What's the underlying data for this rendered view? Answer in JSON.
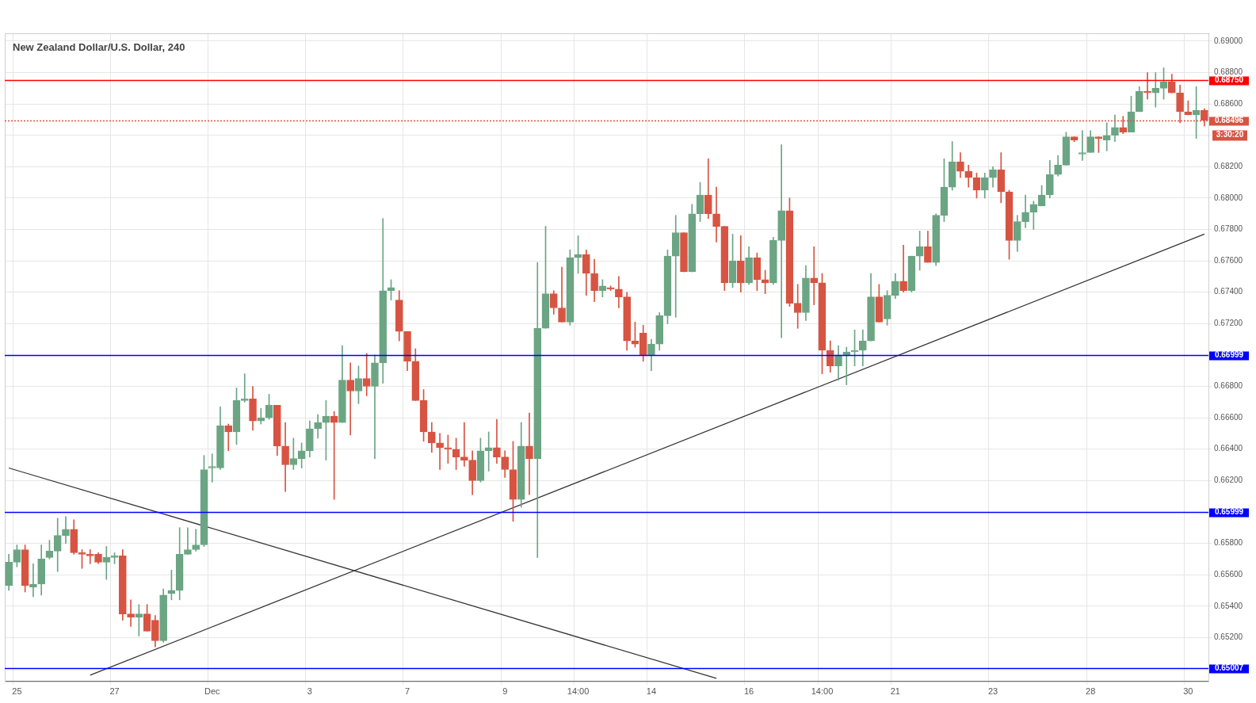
{
  "chart_data": {
    "type": "candlestick",
    "title": "New Zealand Dollar/U.S. Dollar, 240",
    "categories": [
      null,
      "25",
      null,
      null,
      null,
      null,
      null,
      null,
      null,
      null,
      null,
      null,
      null,
      "27",
      null,
      null,
      null,
      null,
      null,
      null,
      null,
      null,
      null,
      null,
      null,
      "Dec",
      null,
      null,
      null,
      null,
      null,
      null,
      null,
      null,
      null,
      null,
      null,
      "3",
      null,
      null,
      null,
      null,
      null,
      null,
      null,
      null,
      null,
      null,
      null,
      "7",
      null,
      null,
      null,
      null,
      null,
      null,
      null,
      null,
      null,
      null,
      null,
      "9",
      null,
      null,
      null,
      null,
      null,
      null,
      null,
      null,
      "14:00",
      null,
      null,
      null,
      null,
      null,
      null,
      null,
      null,
      "14",
      null,
      null,
      null,
      null,
      null,
      null,
      null,
      null,
      null,
      null,
      null,
      "16",
      null,
      null,
      null,
      null,
      null,
      null,
      null,
      null,
      "14:00",
      null,
      null,
      null,
      null,
      null,
      null,
      null,
      null,
      "21",
      null,
      null,
      null,
      null,
      null,
      null,
      null,
      null,
      null,
      null,
      null,
      "23",
      null,
      null,
      null,
      null,
      null,
      null,
      null,
      null,
      null,
      null,
      null,
      "28",
      null,
      null,
      null,
      null,
      null,
      null,
      null,
      null,
      null,
      null,
      null,
      "30",
      null,
      null
    ],
    "ohlc": [
      [
        0.6553,
        0.6573,
        0.655,
        0.6568
      ],
      [
        0.6568,
        0.6579,
        0.6565,
        0.6576
      ],
      [
        0.6576,
        0.6579,
        0.6549,
        0.6553
      ],
      [
        0.6552,
        0.6567,
        0.6546,
        0.6554
      ],
      [
        0.6554,
        0.6579,
        0.6547,
        0.657
      ],
      [
        0.6571,
        0.6582,
        0.657,
        0.6575
      ],
      [
        0.6575,
        0.6596,
        0.6562,
        0.6585
      ],
      [
        0.6585,
        0.6597,
        0.658,
        0.6589
      ],
      [
        0.6589,
        0.6595,
        0.6573,
        0.6574
      ],
      [
        0.6574,
        0.6576,
        0.6564,
        0.6573
      ],
      [
        0.6573,
        0.6576,
        0.6567,
        0.6572
      ],
      [
        0.6573,
        0.6574,
        0.6567,
        0.6568
      ],
      [
        0.6568,
        0.6578,
        0.6557,
        0.6571
      ],
      [
        0.6571,
        0.6574,
        0.6567,
        0.6572
      ],
      [
        0.6572,
        0.6576,
        0.6531,
        0.6535
      ],
      [
        0.6535,
        0.6544,
        0.6527,
        0.6533
      ],
      [
        0.6533,
        0.6541,
        0.6521,
        0.6535
      ],
      [
        0.6535,
        0.6541,
        0.6524,
        0.6524
      ],
      [
        0.6531,
        0.6534,
        0.6514,
        0.6518
      ],
      [
        0.6518,
        0.6551,
        0.6517,
        0.6547
      ],
      [
        0.6548,
        0.6563,
        0.6544,
        0.655
      ],
      [
        0.655,
        0.659,
        0.6544,
        0.6573
      ],
      [
        0.6573,
        0.659,
        0.6573,
        0.6576
      ],
      [
        0.6576,
        0.6589,
        0.6575,
        0.6579
      ],
      [
        0.6579,
        0.6636,
        0.6578,
        0.6627
      ],
      [
        0.6628,
        0.6637,
        0.6619,
        0.6629
      ],
      [
        0.6628,
        0.6667,
        0.6627,
        0.6655
      ],
      [
        0.6655,
        0.6656,
        0.6639,
        0.6651
      ],
      [
        0.6651,
        0.6679,
        0.6643,
        0.6671
      ],
      [
        0.6671,
        0.6688,
        0.667,
        0.6672
      ],
      [
        0.6672,
        0.668,
        0.6652,
        0.6658
      ],
      [
        0.6658,
        0.6666,
        0.6656,
        0.666
      ],
      [
        0.666,
        0.6675,
        0.6659,
        0.6668
      ],
      [
        0.6668,
        0.6668,
        0.6636,
        0.6642
      ],
      [
        0.6642,
        0.6657,
        0.6613,
        0.663
      ],
      [
        0.663,
        0.6647,
        0.6627,
        0.6634
      ],
      [
        0.6634,
        0.6644,
        0.6628,
        0.6639
      ],
      [
        0.6639,
        0.6658,
        0.6635,
        0.6653
      ],
      [
        0.6653,
        0.6662,
        0.6647,
        0.6657
      ],
      [
        0.6657,
        0.6671,
        0.6633,
        0.6661
      ],
      [
        0.6661,
        0.6664,
        0.6608,
        0.6657
      ],
      [
        0.6657,
        0.6706,
        0.6657,
        0.6684
      ],
      [
        0.6684,
        0.6695,
        0.6649,
        0.6677
      ],
      [
        0.6677,
        0.6693,
        0.6669,
        0.6685
      ],
      [
        0.6685,
        0.6701,
        0.6674,
        0.668
      ],
      [
        0.668,
        0.67,
        0.6634,
        0.6695
      ],
      [
        0.6695,
        0.6787,
        0.6682,
        0.6741
      ],
      [
        0.6741,
        0.6748,
        0.6735,
        0.6743
      ],
      [
        0.6735,
        0.6741,
        0.6709,
        0.6715
      ],
      [
        0.6715,
        0.6715,
        0.669,
        0.6696
      ],
      [
        0.6696,
        0.6704,
        0.6671,
        0.6671
      ],
      [
        0.6671,
        0.6678,
        0.6645,
        0.6651
      ],
      [
        0.6651,
        0.6657,
        0.6638,
        0.6644
      ],
      [
        0.6644,
        0.665,
        0.6627,
        0.6641
      ],
      [
        0.6641,
        0.6649,
        0.6631,
        0.664
      ],
      [
        0.664,
        0.6647,
        0.6627,
        0.6635
      ],
      [
        0.6635,
        0.6657,
        0.6629,
        0.6633
      ],
      [
        0.6633,
        0.6639,
        0.6611,
        0.662
      ],
      [
        0.662,
        0.6647,
        0.6619,
        0.6639
      ],
      [
        0.6639,
        0.6651,
        0.6626,
        0.6641
      ],
      [
        0.6641,
        0.6659,
        0.6631,
        0.6635
      ],
      [
        0.6635,
        0.6639,
        0.6622,
        0.6627
      ],
      [
        0.6627,
        0.6645,
        0.6594,
        0.6608
      ],
      [
        0.6608,
        0.6657,
        0.6603,
        0.6642
      ],
      [
        0.6642,
        0.6663,
        0.6611,
        0.6634
      ],
      [
        0.6634,
        0.6759,
        0.6571,
        0.6717
      ],
      [
        0.6717,
        0.6782,
        0.6717,
        0.6739
      ],
      [
        0.6739,
        0.6741,
        0.6726,
        0.673
      ],
      [
        0.673,
        0.6756,
        0.6721,
        0.6721
      ],
      [
        0.6721,
        0.6767,
        0.6719,
        0.6762
      ],
      [
        0.6762,
        0.6776,
        0.6752,
        0.6764
      ],
      [
        0.6764,
        0.6767,
        0.6738,
        0.6752
      ],
      [
        0.6752,
        0.6761,
        0.6734,
        0.6741
      ],
      [
        0.6741,
        0.6748,
        0.6737,
        0.6744
      ],
      [
        0.6743,
        0.6744,
        0.6741,
        0.6742
      ],
      [
        0.6742,
        0.675,
        0.673,
        0.6737
      ],
      [
        0.6737,
        0.674,
        0.6703,
        0.6709
      ],
      [
        0.6709,
        0.6721,
        0.6705,
        0.6707
      ],
      [
        0.6714,
        0.6719,
        0.6696,
        0.67
      ],
      [
        0.67,
        0.671,
        0.669,
        0.6707
      ],
      [
        0.6707,
        0.6727,
        0.6703,
        0.6725
      ],
      [
        0.6725,
        0.6767,
        0.672,
        0.6763
      ],
      [
        0.6763,
        0.6789,
        0.6724,
        0.6778
      ],
      [
        0.6778,
        0.6778,
        0.6753,
        0.6753
      ],
      [
        0.6753,
        0.6796,
        0.6753,
        0.679
      ],
      [
        0.679,
        0.681,
        0.6785,
        0.6802
      ],
      [
        0.6802,
        0.6825,
        0.6787,
        0.679
      ],
      [
        0.679,
        0.6807,
        0.6772,
        0.6782
      ],
      [
        0.6782,
        0.6782,
        0.6741,
        0.6746
      ],
      [
        0.6746,
        0.6777,
        0.6743,
        0.676
      ],
      [
        0.676,
        0.6776,
        0.674,
        0.6746
      ],
      [
        0.6746,
        0.6769,
        0.6745,
        0.6762
      ],
      [
        0.6762,
        0.6765,
        0.6741,
        0.6748
      ],
      [
        0.6748,
        0.6754,
        0.6739,
        0.6746
      ],
      [
        0.6746,
        0.6775,
        0.6745,
        0.6773
      ],
      [
        0.6773,
        0.6834,
        0.6711,
        0.6792
      ],
      [
        0.6792,
        0.68,
        0.6731,
        0.6733
      ],
      [
        0.6733,
        0.6745,
        0.6717,
        0.6727
      ],
      [
        0.6727,
        0.6757,
        0.6722,
        0.6749
      ],
      [
        0.6749,
        0.6769,
        0.6732,
        0.6746
      ],
      [
        0.6746,
        0.6752,
        0.6688,
        0.6703
      ],
      [
        0.6703,
        0.6709,
        0.6689,
        0.6693
      ],
      [
        0.6693,
        0.6706,
        0.6684,
        0.67
      ],
      [
        0.67,
        0.6705,
        0.6681,
        0.6702
      ],
      [
        0.6702,
        0.6716,
        0.6693,
        0.6703
      ],
      [
        0.6703,
        0.6716,
        0.6693,
        0.6709
      ],
      [
        0.6709,
        0.6752,
        0.6709,
        0.6737
      ],
      [
        0.6737,
        0.6745,
        0.6721,
        0.6721
      ],
      [
        0.6723,
        0.6741,
        0.6719,
        0.6738
      ],
      [
        0.6738,
        0.6752,
        0.6736,
        0.6747
      ],
      [
        0.6747,
        0.677,
        0.674,
        0.6741
      ],
      [
        0.6741,
        0.6763,
        0.674,
        0.6763
      ],
      [
        0.6763,
        0.6779,
        0.6754,
        0.6769
      ],
      [
        0.6769,
        0.6779,
        0.6759,
        0.6759
      ],
      [
        0.6759,
        0.679,
        0.6757,
        0.6789
      ],
      [
        0.6789,
        0.6825,
        0.6785,
        0.6807
      ],
      [
        0.6807,
        0.6836,
        0.6805,
        0.6823
      ],
      [
        0.6823,
        0.6829,
        0.6813,
        0.6817
      ],
      [
        0.6817,
        0.6821,
        0.6807,
        0.6813
      ],
      [
        0.6813,
        0.6816,
        0.68,
        0.6805
      ],
      [
        0.6805,
        0.6816,
        0.68,
        0.6813
      ],
      [
        0.6813,
        0.682,
        0.6807,
        0.6818
      ],
      [
        0.6818,
        0.6829,
        0.6797,
        0.6804
      ],
      [
        0.6804,
        0.6805,
        0.6761,
        0.6773
      ],
      [
        0.6773,
        0.6789,
        0.6766,
        0.6785
      ],
      [
        0.6785,
        0.6802,
        0.6781,
        0.6791
      ],
      [
        0.6791,
        0.6798,
        0.678,
        0.6796
      ],
      [
        0.6795,
        0.6808,
        0.6795,
        0.6802
      ],
      [
        0.6802,
        0.6824,
        0.68,
        0.6815
      ],
      [
        0.6815,
        0.6827,
        0.6814,
        0.6821
      ],
      [
        0.6821,
        0.6842,
        0.6821,
        0.6839
      ],
      [
        0.6839,
        0.6839,
        0.6836,
        0.6837
      ],
      [
        0.6828,
        0.6843,
        0.6824,
        0.6829
      ],
      [
        0.6829,
        0.6843,
        0.6829,
        0.6839
      ],
      [
        0.6839,
        0.6839,
        0.6829,
        0.6838
      ],
      [
        0.6837,
        0.6848,
        0.683,
        0.684
      ],
      [
        0.684,
        0.6853,
        0.6836,
        0.6845
      ],
      [
        0.6845,
        0.6852,
        0.6841,
        0.6842
      ],
      [
        0.6842,
        0.6865,
        0.6842,
        0.6855
      ],
      [
        0.6855,
        0.6871,
        0.6855,
        0.6868
      ],
      [
        0.6868,
        0.688,
        0.6863,
        0.6867
      ],
      [
        0.6867,
        0.688,
        0.6858,
        0.687
      ],
      [
        0.687,
        0.6883,
        0.6863,
        0.6874
      ],
      [
        0.6874,
        0.6879,
        0.6867,
        0.6867
      ],
      [
        0.6867,
        0.6872,
        0.6848,
        0.6855
      ],
      [
        0.6855,
        0.6862,
        0.6853,
        0.6853
      ],
      [
        0.6853,
        0.6871,
        0.6838,
        0.6856
      ],
      [
        0.6856,
        0.6857,
        0.6846,
        0.68496
      ]
    ],
    "colors": [
      "#6ba583",
      "#6ba583",
      "#d75442",
      "#6ba583",
      "#6ba583",
      "#6ba583",
      "#6ba583",
      "#6ba583",
      "#d75442",
      "#d75442",
      "#d75442",
      "#d75442",
      "#6ba583",
      "#6ba583",
      "#d75442",
      "#d75442",
      "#6ba583",
      "#d75442",
      "#d75442",
      "#6ba583",
      "#6ba583",
      "#6ba583",
      "#6ba583",
      "#6ba583",
      "#6ba583",
      "#6ba583",
      "#6ba583",
      "#d75442",
      "#6ba583",
      "#6ba583",
      "#d75442",
      "#6ba583",
      "#6ba583",
      "#d75442",
      "#d75442",
      "#6ba583",
      "#6ba583",
      "#6ba583",
      "#6ba583",
      "#6ba583",
      "#d75442",
      "#6ba583",
      "#d75442",
      "#6ba583",
      "#d75442",
      "#6ba583",
      "#6ba583",
      "#6ba583",
      "#d75442",
      "#d75442",
      "#d75442",
      "#d75442",
      "#d75442",
      "#d75442",
      "#d75442",
      "#d75442",
      "#d75442",
      "#d75442",
      "#6ba583",
      "#6ba583",
      "#d75442",
      "#d75442",
      "#d75442",
      "#6ba583",
      "#d75442",
      "#6ba583",
      "#6ba583",
      "#d75442",
      "#d75442",
      "#6ba583",
      "#6ba583",
      "#d75442",
      "#d75442",
      "#6ba583",
      "#d75442",
      "#d75442",
      "#d75442",
      "#d75442",
      "#d75442",
      "#6ba583",
      "#6ba583",
      "#6ba583",
      "#6ba583",
      "#d75442",
      "#6ba583",
      "#6ba583",
      "#d75442",
      "#d75442",
      "#d75442",
      "#6ba583",
      "#d75442",
      "#6ba583",
      "#d75442",
      "#d75442",
      "#6ba583",
      "#6ba583",
      "#d75442",
      "#d75442",
      "#6ba583",
      "#d75442",
      "#d75442",
      "#d75442",
      "#6ba583",
      "#6ba583",
      "#6ba583",
      "#6ba583",
      "#6ba583",
      "#d75442",
      "#6ba583",
      "#6ba583",
      "#d75442",
      "#6ba583",
      "#6ba583",
      "#d75442",
      "#6ba583",
      "#6ba583",
      "#6ba583",
      "#d75442",
      "#d75442",
      "#d75442",
      "#6ba583",
      "#6ba583",
      "#d75442",
      "#d75442",
      "#6ba583",
      "#6ba583",
      "#6ba583",
      "#6ba583",
      "#6ba583",
      "#6ba583",
      "#6ba583",
      "#d75442",
      "#6ba583",
      "#6ba583",
      "#d75442",
      "#6ba583",
      "#6ba583",
      "#d75442",
      "#6ba583",
      "#6ba583",
      "#d75442",
      "#6ba583",
      "#6ba583",
      "#d75442",
      "#d75442",
      "#d75442",
      "#6ba583",
      "#d75442"
    ],
    "series": [
      {
        "type": "line",
        "color": "#333333",
        "values": [
          null,
          null,
          null,
          null,
          null,
          null,
          null,
          null,
          null,
          null,
          0.6496,
          null,
          null,
          null,
          null,
          null,
          null,
          null,
          null,
          null,
          null,
          null,
          null,
          null,
          null,
          null,
          null,
          null,
          null,
          null,
          null,
          null,
          null,
          null,
          null,
          null,
          null,
          null,
          null,
          null,
          null,
          null,
          null,
          null,
          null,
          null,
          null,
          null,
          null,
          null,
          null,
          null,
          null,
          null,
          null,
          null,
          null,
          null,
          null,
          null,
          null,
          null,
          null,
          null,
          null,
          null,
          null,
          null,
          null,
          null,
          null,
          null,
          null,
          null,
          null,
          null,
          null,
          null,
          null,
          null,
          null,
          null,
          null,
          null,
          null,
          null,
          null,
          null,
          null,
          null,
          null,
          null,
          null,
          null,
          null,
          null,
          null,
          null,
          null,
          null,
          null,
          null,
          null,
          null,
          null,
          null,
          null,
          null,
          null,
          null,
          null,
          null,
          null,
          null,
          null,
          null,
          null,
          null,
          null,
          null,
          null,
          null,
          null,
          null,
          null,
          null,
          null,
          null,
          null,
          null,
          null,
          null,
          null,
          null,
          null,
          null,
          null,
          null,
          null,
          null,
          null,
          null,
          null,
          null,
          null,
          null,
          null,
          0.6777
        ]
      },
      {
        "type": "line",
        "color": "#333333",
        "values": [
          0.6628,
          null,
          null,
          null,
          null,
          null,
          null,
          null,
          null,
          null,
          null,
          null,
          null,
          null,
          null,
          null,
          null,
          null,
          null,
          null,
          null,
          null,
          null,
          null,
          null,
          null,
          null,
          null,
          null,
          null,
          null,
          null,
          null,
          null,
          null,
          null,
          null,
          null,
          null,
          null,
          null,
          null,
          null,
          null,
          null,
          null,
          null,
          null,
          null,
          null,
          null,
          null,
          null,
          null,
          null,
          null,
          null,
          null,
          null,
          null,
          null,
          null,
          null,
          null,
          null,
          null,
          null,
          null,
          null,
          null,
          null,
          null,
          null,
          null,
          null,
          null,
          null,
          null,
          null,
          null,
          null,
          null,
          null,
          null,
          null,
          null,
          null,
          0.6494,
          null,
          null,
          null,
          null,
          null,
          null,
          null,
          null,
          null,
          null,
          null,
          null,
          null,
          null,
          null,
          null,
          null,
          null,
          null,
          null,
          null,
          null,
          null,
          null,
          null,
          null,
          null,
          null,
          null,
          null,
          null,
          null,
          null,
          null,
          null,
          null,
          null,
          null,
          null,
          null,
          null,
          null,
          null,
          null,
          null,
          null,
          null,
          null,
          null,
          null,
          null,
          null,
          null,
          null,
          null,
          null,
          null,
          null,
          null,
          null
        ]
      }
    ],
    "ylim": [
      0.6492,
      0.6905
    ],
    "yticks": [
      {
        "value": 0.652,
        "label": "0.65200"
      },
      {
        "value": 0.654,
        "label": "0.65400"
      },
      {
        "value": 0.656,
        "label": "0.65600"
      },
      {
        "value": 0.658,
        "label": "0.65800"
      },
      {
        "value": 0.662,
        "label": "0.66200"
      },
      {
        "value": 0.664,
        "label": "0.66400"
      },
      {
        "value": 0.666,
        "label": "0.66600"
      },
      {
        "value": 0.668,
        "label": "0.66800"
      },
      {
        "value": 0.672,
        "label": "0.67200"
      },
      {
        "value": 0.674,
        "label": "0.67400"
      },
      {
        "value": 0.676,
        "label": "0.67600"
      },
      {
        "value": 0.678,
        "label": "0.67800"
      },
      {
        "value": 0.68,
        "label": "0.68000"
      },
      {
        "value": 0.682,
        "label": "0.68200"
      },
      {
        "value": 0.684,
        "label": null
      },
      {
        "value": 0.686,
        "label": "0.68600"
      },
      {
        "value": 0.688,
        "label": "0.68800"
      },
      {
        "value": 0.69,
        "label": "0.69000"
      }
    ],
    "ref_lines": [
      {
        "axis": "y",
        "value": 0.6875,
        "label": "0.68750",
        "color": "#ff0000",
        "line_style": "solid"
      },
      {
        "axis": "y",
        "value": 0.68496,
        "label": "0.68496",
        "color": "#d75442",
        "line_style": "dotted"
      },
      {
        "axis": "y",
        "value": 0.66999,
        "label": "0.66999",
        "color": "#0000ff",
        "line_style": "solid"
      },
      {
        "axis": "y",
        "value": 0.65999,
        "label": "0.65999",
        "color": "#0000ff",
        "line_style": "solid"
      },
      {
        "axis": "y",
        "value": 0.65007,
        "label": "0.65007",
        "color": "#0000ff",
        "line_style": "solid"
      }
    ],
    "annotations": [
      "3:30:20"
    ],
    "grid": true,
    "legend": false
  }
}
